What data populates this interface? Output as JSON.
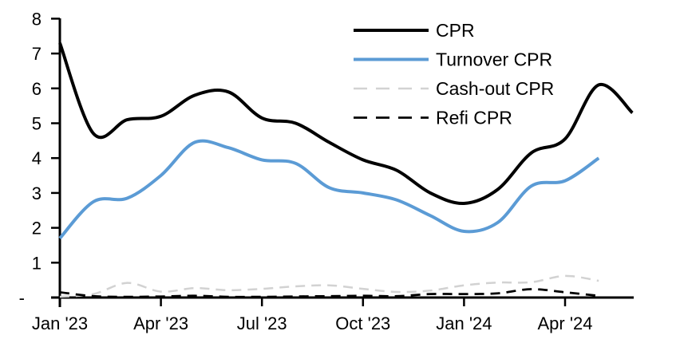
{
  "chart_data": {
    "type": "line",
    "title": "",
    "xlabel": "",
    "ylabel": "",
    "smoothed": true,
    "grid": false,
    "legend_position": "top-right-inside",
    "background": "#ffffff",
    "axis_color": "#000000",
    "ylim": [
      0,
      8
    ],
    "y_ticks": [
      {
        "value": 8,
        "label": "8"
      },
      {
        "value": 7,
        "label": "7"
      },
      {
        "value": 6,
        "label": "6"
      },
      {
        "value": 5,
        "label": "5"
      },
      {
        "value": 4,
        "label": "4"
      },
      {
        "value": 3,
        "label": "3"
      },
      {
        "value": 2,
        "label": "2"
      },
      {
        "value": 1,
        "label": "1"
      },
      {
        "value": 0,
        "label": "-"
      }
    ],
    "categories": [
      "Jan '23",
      "Feb '23",
      "Mar '23",
      "Apr '23",
      "May '23",
      "Jun '23",
      "Jul '23",
      "Aug '23",
      "Sep '23",
      "Oct '23",
      "Nov '23",
      "Dec '23",
      "Jan '24",
      "Feb '24",
      "Mar '24",
      "Apr '24",
      "May '24",
      "Jun '24"
    ],
    "x_tick_labels": [
      "Jan '23",
      "Apr '23",
      "Jul '23",
      "Oct '23",
      "Jan '24",
      "Apr '24"
    ],
    "x_tick_indices": [
      0,
      3,
      6,
      9,
      12,
      15
    ],
    "series": [
      {
        "name": "CPR",
        "color": "#000000",
        "line_style": "solid",
        "line_width": 4,
        "values": [
          7.3,
          4.7,
          5.1,
          5.2,
          5.8,
          5.9,
          5.15,
          5.0,
          4.45,
          3.95,
          3.65,
          3.0,
          2.7,
          3.1,
          4.15,
          4.55,
          6.1,
          5.3
        ]
      },
      {
        "name": "Turnover CPR",
        "color": "#5B9BD5",
        "line_style": "solid",
        "line_width": 4,
        "values": [
          1.7,
          2.75,
          2.85,
          3.5,
          4.45,
          4.3,
          3.95,
          3.85,
          3.15,
          3.0,
          2.8,
          2.35,
          1.9,
          2.15,
          3.2,
          3.35,
          4.0
        ]
      },
      {
        "name": "Cash-out CPR",
        "color": "#D2D2D2",
        "line_style": "dashed",
        "line_width": 2.5,
        "values": [
          0.02,
          0.1,
          0.42,
          0.17,
          0.27,
          0.21,
          0.25,
          0.32,
          0.35,
          0.25,
          0.16,
          0.2,
          0.35,
          0.43,
          0.44,
          0.62,
          0.48
        ]
      },
      {
        "name": "Refi CPR",
        "color": "#000000",
        "line_style": "dashed",
        "line_width": 2.75,
        "values": [
          0.15,
          0.04,
          0.02,
          0.03,
          0.05,
          0.02,
          0.02,
          0.03,
          0.04,
          0.05,
          0.04,
          0.1,
          0.1,
          0.12,
          0.24,
          0.15,
          0.05
        ]
      }
    ]
  }
}
